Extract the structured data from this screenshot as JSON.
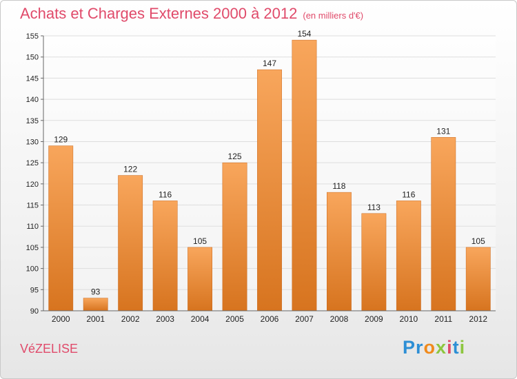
{
  "title": "Achats et Charges Externes 2000 à 2012",
  "subtitle": "(en milliers d'€)",
  "commune": "VéZELISE",
  "logo": {
    "letters": [
      "P",
      "r",
      "o",
      "x",
      "i",
      "t",
      "i"
    ],
    "colors": [
      "#2d8fd5",
      "#2d8fd5",
      "#f08a1c",
      "#8dc63f",
      "#e04a6a",
      "#2d8fd5",
      "#8dc63f"
    ]
  },
  "colors": {
    "bar_top": "#f8a65c",
    "bar_bottom": "#d7741f",
    "title": "#e04a6a"
  },
  "chart_data": {
    "type": "bar",
    "categories": [
      "2000",
      "2001",
      "2002",
      "2003",
      "2004",
      "2005",
      "2006",
      "2007",
      "2008",
      "2009",
      "2010",
      "2011",
      "2012"
    ],
    "values": [
      129,
      93,
      122,
      116,
      105,
      125,
      147,
      154,
      118,
      113,
      116,
      131,
      105
    ],
    "ylim": [
      90,
      155
    ],
    "yticks": [
      90,
      95,
      100,
      105,
      110,
      115,
      120,
      125,
      130,
      135,
      140,
      145,
      150,
      155
    ],
    "grid": true
  }
}
